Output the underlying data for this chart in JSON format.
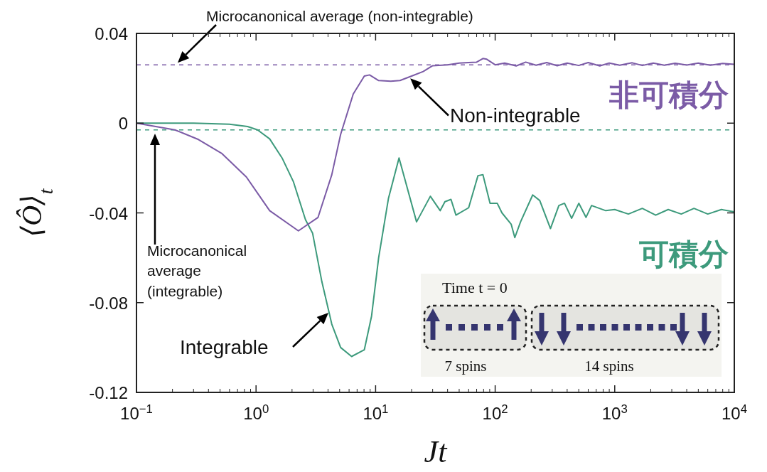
{
  "chart_data": {
    "type": "line",
    "xlabel": "Jt",
    "ylabel": "⟨Ô⟩$_{t}$",
    "log": "x",
    "xlim": [
      0.1,
      10000
    ],
    "ylim": [
      -0.12,
      0.04
    ],
    "xticks": [
      {
        "value": 0.1,
        "label": "10$^{−1}$"
      },
      {
        "value": 1,
        "label": "10$^{0}$"
      },
      {
        "value": 10,
        "label": "10$^{1}$"
      },
      {
        "value": 100,
        "label": "10$^{2}$"
      },
      {
        "value": 1000,
        "label": "10$^{3}$"
      },
      {
        "value": 10000,
        "label": "10$^{4}$"
      }
    ],
    "yticks": [
      0.04,
      0,
      -0.04,
      -0.08,
      -0.12
    ],
    "series": [
      {
        "name": "可積分",
        "color": "#3d9a7c",
        "x": [
          0.1,
          0.3,
          0.6,
          0.85,
          1.03,
          1.3,
          1.65,
          2.05,
          2.59,
          2.97,
          3.55,
          4.3,
          5.1,
          6.3,
          8.05,
          9.25,
          10.6,
          12.8,
          15.7,
          22,
          28.7,
          34.7,
          38,
          42.7,
          47,
          60,
          71.8,
          79,
          90.6,
          104,
          114,
          136,
          146,
          163,
          206,
          236,
          290,
          341,
          380,
          436,
          501,
          575,
          640,
          841,
          1000,
          1300,
          1700,
          2200,
          2800,
          3600,
          4600,
          6000,
          7800,
          10000
        ],
        "values": [
          0,
          0,
          -0.0005,
          -0.0015,
          -0.003,
          -0.007,
          -0.0155,
          -0.026,
          -0.043,
          -0.049,
          -0.0706,
          -0.0896,
          -0.1,
          -0.104,
          -0.101,
          -0.086,
          -0.06,
          -0.0336,
          -0.0155,
          -0.044,
          -0.0326,
          -0.039,
          -0.035,
          -0.034,
          -0.041,
          -0.0377,
          -0.0234,
          -0.023,
          -0.0357,
          -0.0357,
          -0.04,
          -0.045,
          -0.051,
          -0.044,
          -0.032,
          -0.0345,
          -0.047,
          -0.0367,
          -0.0357,
          -0.0424,
          -0.0357,
          -0.042,
          -0.0367,
          -0.039,
          -0.0385,
          -0.0405,
          -0.038,
          -0.041,
          -0.0385,
          -0.0405,
          -0.038,
          -0.0405,
          -0.0385,
          -0.0395
        ]
      },
      {
        "name": "非可積分",
        "color": "#7b5ba6",
        "x": [
          0.1,
          0.21,
          0.33,
          0.52,
          0.83,
          1.3,
          2.26,
          3.3,
          4.3,
          5.1,
          6.5,
          8.05,
          8.9,
          10.6,
          13.4,
          16,
          20,
          25,
          30,
          40,
          50,
          60,
          70,
          79,
          85,
          100,
          120,
          150,
          180,
          220,
          270,
          330,
          400,
          500,
          600,
          750,
          900,
          1100,
          1400,
          1700,
          2100,
          2600,
          3200,
          4000,
          5000,
          6300,
          8000,
          10000
        ],
        "values": [
          0,
          -0.003,
          -0.0073,
          -0.0136,
          -0.024,
          -0.039,
          -0.048,
          -0.042,
          -0.023,
          -0.005,
          0.013,
          0.021,
          0.0215,
          0.019,
          0.0187,
          0.019,
          0.021,
          0.023,
          0.0256,
          0.026,
          0.0268,
          0.027,
          0.0272,
          0.0288,
          0.0285,
          0.026,
          0.0268,
          0.0255,
          0.0272,
          0.0258,
          0.027,
          0.0256,
          0.0268,
          0.0257,
          0.027,
          0.0255,
          0.0268,
          0.0258,
          0.0269,
          0.0257,
          0.0268,
          0.0258,
          0.0267,
          0.0259,
          0.0268,
          0.0258,
          0.0266,
          0.0262
        ]
      }
    ],
    "ref_lines": [
      {
        "axis": "y",
        "value": 0.026,
        "label": "Microcanonical average (non-integrable)",
        "color": "#7b5ba6",
        "line_style": "dashed"
      },
      {
        "axis": "y",
        "value": -0.003,
        "color": "#3d9a7c",
        "line_style": "dashed"
      }
    ],
    "annotations": [
      {
        "text": "Non-integrable",
        "x": 19.5,
        "y": 0.02
      },
      "Integrable",
      "Time t = 0",
      "7 spins",
      "14 spins",
      "Microcanonical\naverage\n(integrable)"
    ]
  }
}
